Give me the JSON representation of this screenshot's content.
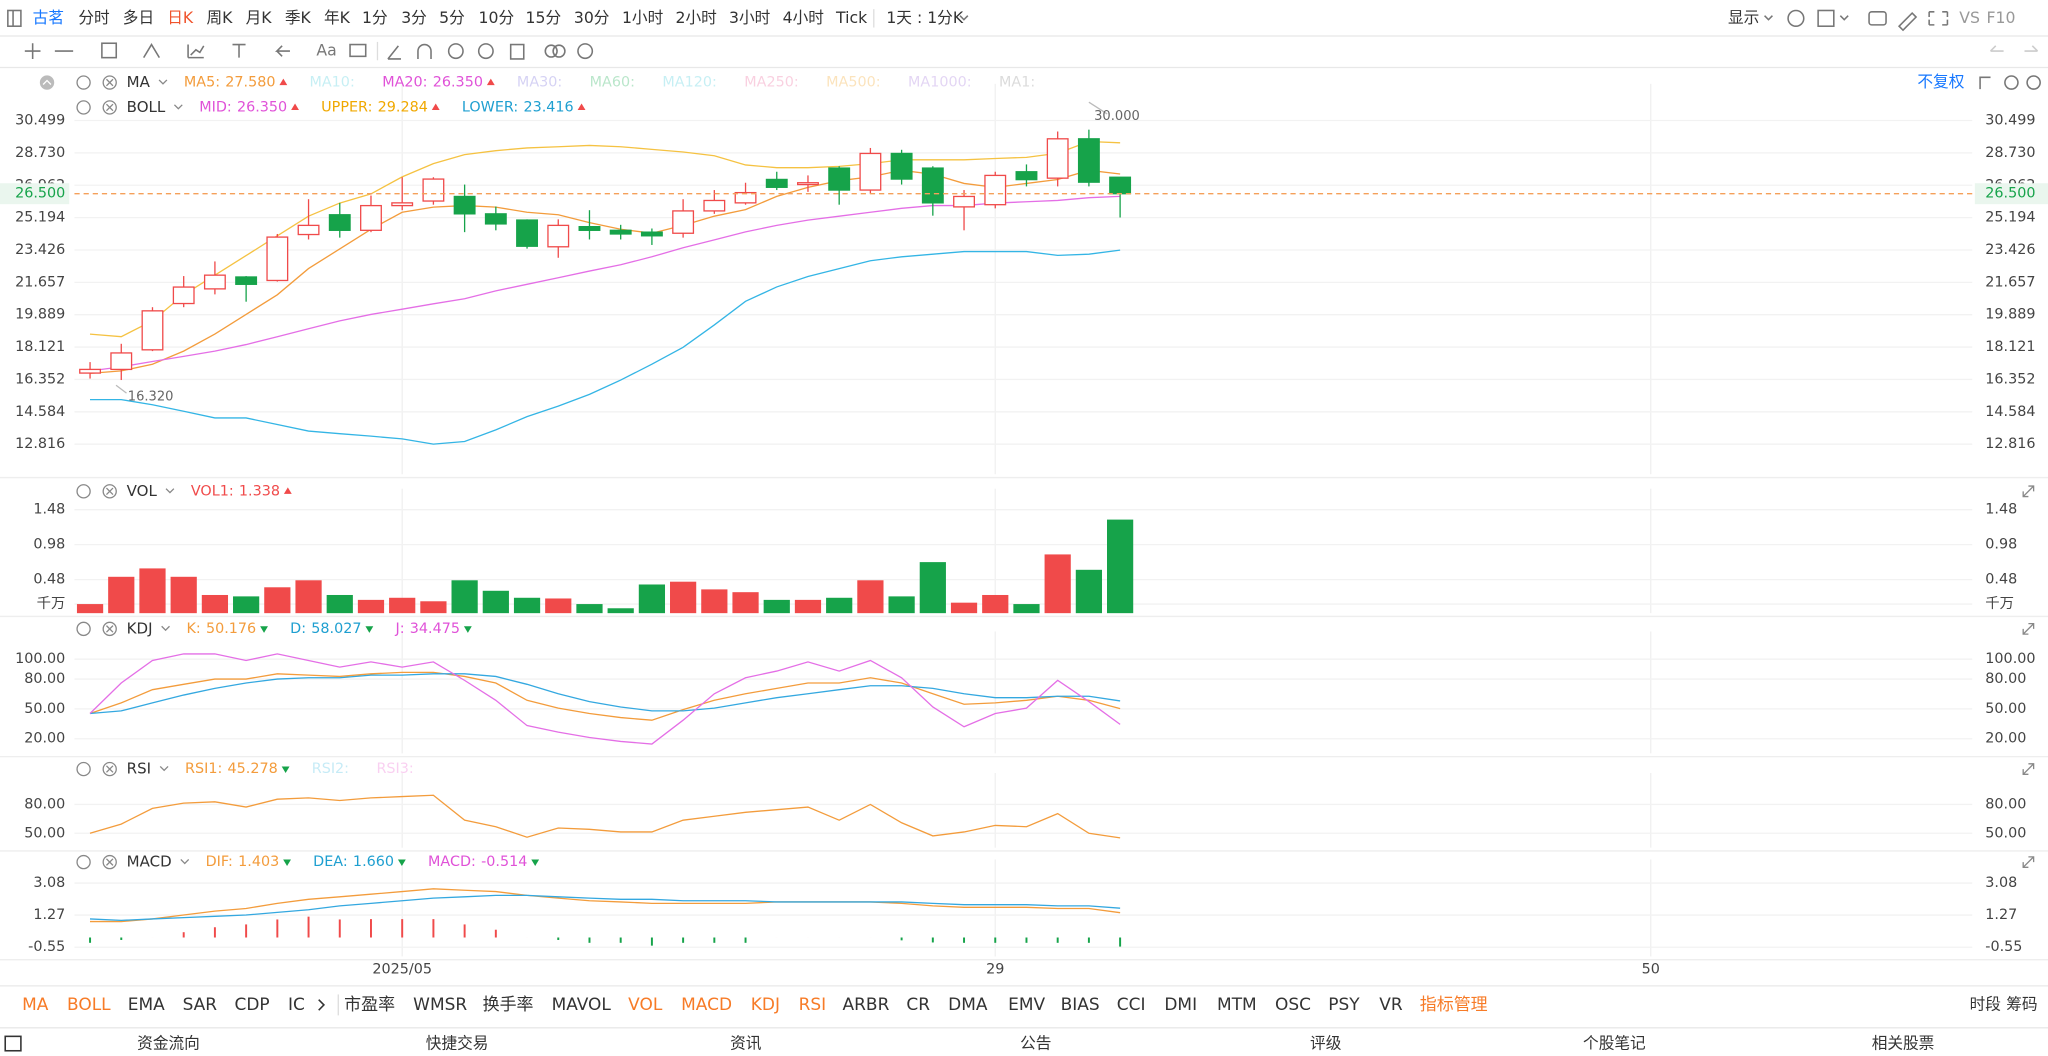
{
  "toolbar": {
    "brand": "古茗",
    "periods": [
      "分时",
      "多日",
      "日K",
      "周K",
      "月K",
      "季K",
      "年K",
      "1分",
      "3分",
      "5分",
      "10分",
      "15分",
      "30分",
      "1小时",
      "2小时",
      "3小时",
      "4小时",
      "Tick"
    ],
    "active_period": 2,
    "interval": "1天 : 1分K",
    "display": "显示",
    "vs": "VS",
    "f10": "F10",
    "adjust": "不复权",
    "font_tool": "Aa"
  },
  "indicator_tabs": [
    {
      "label": "MA",
      "active": true
    },
    {
      "label": "BOLL",
      "active": true
    },
    {
      "label": "EMA",
      "active": false
    },
    {
      "label": "SAR",
      "active": false
    },
    {
      "label": "CDP",
      "active": false
    },
    {
      "label": "IC",
      "active": false
    },
    {
      "label": "市盈率",
      "active": false
    },
    {
      "label": "WMSR",
      "active": false
    },
    {
      "label": "换手率",
      "active": false
    },
    {
      "label": "MAVOL",
      "active": false
    },
    {
      "label": "VOL",
      "active": true
    },
    {
      "label": "MACD",
      "active": true
    },
    {
      "label": "KDJ",
      "active": true
    },
    {
      "label": "RSI",
      "active": true
    },
    {
      "label": "ARBR",
      "active": false
    },
    {
      "label": "CR",
      "active": false
    },
    {
      "label": "DMA",
      "active": false
    },
    {
      "label": "EMV",
      "active": false
    },
    {
      "label": "BIAS",
      "active": false
    },
    {
      "label": "CCI",
      "active": false
    },
    {
      "label": "DMI",
      "active": false
    },
    {
      "label": "MTM",
      "active": false
    },
    {
      "label": "OSC",
      "active": false
    },
    {
      "label": "PSY",
      "active": false
    },
    {
      "label": "VR",
      "active": false
    },
    {
      "label": "指标管理",
      "active": true
    }
  ],
  "side_tabs": [
    "时段",
    "筹码"
  ],
  "footer": [
    "资金流向",
    "快捷交易",
    "资讯",
    "公告",
    "评级",
    "个股笔记",
    "相关股票"
  ],
  "chart_data": [
    {
      "type": "candlestick",
      "open": [
        16.7,
        16.9,
        17.97,
        20.5,
        21.3,
        21.95,
        21.76,
        24.27,
        25.35,
        24.5,
        25.85,
        26.1,
        26.35,
        25.4,
        25.06,
        23.6,
        24.7,
        24.5,
        24.4,
        24.34,
        25.56,
        26.0,
        27.28,
        27.0,
        27.9,
        26.7,
        28.7,
        27.9,
        25.78,
        25.9,
        27.7,
        27.35,
        29.5,
        27.4
      ],
      "high": [
        17.3,
        18.3,
        20.3,
        22.0,
        22.8,
        22.0,
        24.3,
        26.2,
        26.0,
        26.4,
        27.4,
        27.4,
        27.0,
        25.8,
        25.1,
        25.1,
        25.6,
        24.8,
        24.6,
        26.2,
        26.7,
        27.1,
        27.7,
        27.5,
        28.0,
        29.0,
        28.9,
        28.0,
        26.7,
        27.7,
        28.1,
        29.9,
        30.0,
        27.4
      ],
      "low": [
        16.4,
        16.32,
        17.9,
        20.3,
        21.0,
        20.6,
        21.7,
        24.0,
        24.1,
        24.4,
        25.6,
        25.9,
        24.4,
        24.5,
        23.5,
        23.0,
        24.0,
        24.0,
        23.7,
        24.1,
        25.4,
        25.9,
        26.7,
        26.6,
        25.9,
        26.5,
        27.0,
        25.3,
        24.5,
        25.7,
        26.9,
        26.9,
        26.9,
        25.2
      ],
      "close": [
        16.9,
        17.8,
        20.1,
        21.4,
        22.05,
        21.55,
        24.13,
        24.77,
        24.5,
        25.85,
        26.0,
        27.3,
        25.4,
        24.85,
        23.63,
        24.77,
        24.5,
        24.3,
        24.2,
        25.56,
        26.13,
        26.56,
        26.85,
        27.1,
        26.7,
        28.7,
        27.3,
        26.0,
        26.35,
        27.5,
        27.27,
        29.5,
        27.13,
        26.5
      ],
      "up_color": "#f04a4a",
      "down_color": "#16a34a",
      "ylim": [
        11.17,
        31.93
      ],
      "yticks": [
        30.499,
        {
          "value": 28.73,
          "label": "28.730"
        },
        26.962,
        25.194,
        23.426,
        21.657,
        19.889,
        18.121,
        16.352,
        14.584,
        12.816
      ],
      "grid": true,
      "last_price": {
        "value": 26.5,
        "label": "26.500"
      },
      "high_mark": {
        "index": 32,
        "value": 30.0,
        "label": "30.000"
      },
      "low_mark": {
        "index": 1,
        "value": 16.32,
        "label": "16.320"
      },
      "lines": [
        {
          "color": "#f5c242",
          "values": [
            18.83,
            18.69,
            19.55,
            20.98,
            22.05,
            23.12,
            24.2,
            25.27,
            25.99,
            26.49,
            27.42,
            28.14,
            28.64,
            28.85,
            29.0,
            29.07,
            29.14,
            29.07,
            28.92,
            28.78,
            28.57,
            28.07,
            27.92,
            27.92,
            27.99,
            28.14,
            28.35,
            28.35,
            28.35,
            28.42,
            28.49,
            28.71,
            29.35,
            29.284
          ]
        },
        {
          "color": "#f39c3c",
          "values": [
            16.68,
            16.82,
            17.18,
            17.9,
            18.83,
            19.9,
            20.98,
            22.41,
            23.48,
            24.56,
            25.49,
            25.77,
            25.85,
            25.77,
            25.49,
            25.35,
            24.92,
            24.56,
            24.34,
            24.77,
            25.27,
            25.63,
            26.35,
            26.85,
            27.21,
            27.42,
            27.78,
            27.56,
            27.06,
            26.85,
            27.06,
            27.28,
            27.78,
            27.58
          ]
        },
        {
          "color": "#e46fe6",
          "values": [
            16.82,
            17.04,
            17.33,
            17.61,
            17.9,
            18.26,
            18.69,
            19.12,
            19.55,
            19.9,
            20.19,
            20.48,
            20.76,
            21.19,
            21.55,
            21.91,
            22.27,
            22.62,
            23.05,
            23.55,
            23.98,
            24.41,
            24.77,
            25.06,
            25.27,
            25.49,
            25.7,
            25.85,
            25.85,
            25.99,
            26.06,
            26.13,
            26.28,
            26.35
          ]
        },
        {
          "color": "#34b5e5",
          "values": [
            15.25,
            15.25,
            14.97,
            14.61,
            14.25,
            14.25,
            13.89,
            13.53,
            13.39,
            13.25,
            13.1,
            12.82,
            12.96,
            13.6,
            14.32,
            14.89,
            15.54,
            16.32,
            17.18,
            18.11,
            19.33,
            20.62,
            21.41,
            21.98,
            22.41,
            22.84,
            23.05,
            23.2,
            23.34,
            23.34,
            23.34,
            23.13,
            23.2,
            23.416
          ]
        }
      ],
      "legends": [
        {
          "title": "MA",
          "items": [
            {
              "name": "MA5:",
              "value": "27.580",
              "color": "#f39c3c",
              "trend": "up",
              "active": true
            },
            {
              "name": "MA10:",
              "color": "#5fd3e0",
              "active": false
            },
            {
              "name": "MA20:",
              "value": "26.350",
              "color": "#e052d8",
              "trend": "up",
              "active": true
            },
            {
              "name": "MA30:",
              "color": "#8a7fe0",
              "active": false
            },
            {
              "name": "MA60:",
              "color": "#39b86a",
              "active": false
            },
            {
              "name": "MA120:",
              "color": "#5fd3e0",
              "active": false
            },
            {
              "name": "MA250:",
              "color": "#f07aa8",
              "active": false
            },
            {
              "name": "MA500:",
              "color": "#f5b042",
              "active": false
            },
            {
              "name": "MA1000:",
              "color": "#b08ae0",
              "active": false
            },
            {
              "name": "MA1:",
              "color": "#999999",
              "active": false
            }
          ]
        },
        {
          "title": "BOLL",
          "items": [
            {
              "name": "MID:",
              "value": "26.350",
              "color": "#e052d8",
              "trend": "up",
              "active": true
            },
            {
              "name": "UPPER:",
              "value": "29.284",
              "color": "#f0a800",
              "trend": "up",
              "active": true
            },
            {
              "name": "LOWER:",
              "value": "23.416",
              "color": "#1e9fd0",
              "trend": "up",
              "active": true
            }
          ]
        }
      ]
    },
    {
      "type": "bar",
      "values": [
        0.13,
        0.52,
        0.64,
        0.52,
        0.26,
        0.24,
        0.37,
        0.47,
        0.26,
        0.19,
        0.22,
        0.17,
        0.47,
        0.32,
        0.22,
        0.21,
        0.13,
        0.07,
        0.41,
        0.45,
        0.34,
        0.3,
        0.19,
        0.19,
        0.22,
        0.47,
        0.24,
        0.73,
        0.15,
        0.26,
        0.13,
        0.84,
        0.62,
        1.338
      ],
      "ylim": [
        0,
        1.63
      ],
      "yticks": [
        1.48,
        0.98,
        0.48,
        {
          "value": 0.13,
          "label": "千万"
        }
      ],
      "grid": true,
      "legends": [
        {
          "title": "VOL",
          "items": [
            {
              "name": "VOL1:",
              "value": "1.338",
              "color": "#f04a4a",
              "trend": "up",
              "active": true
            }
          ]
        }
      ]
    },
    {
      "type": "line",
      "ylim": [
        5.3,
        117.3
      ],
      "yticks": [
        {
          "value": 100,
          "label": "100.00"
        },
        {
          "value": 80,
          "label": "80.00"
        },
        {
          "value": 50,
          "label": "50.00"
        },
        {
          "value": 20,
          "label": "20.00"
        }
      ],
      "grid": true,
      "lines": [
        {
          "color": "#f39c3c",
          "values": [
            45.3,
            56,
            69.3,
            74.7,
            80,
            80,
            85.3,
            84,
            82.7,
            85.3,
            86.7,
            86.7,
            82.7,
            76,
            58.7,
            50.7,
            45.3,
            41.3,
            38.7,
            49.3,
            58.7,
            65.3,
            70.7,
            76,
            76,
            81.3,
            76,
            65.3,
            54.7,
            56,
            58.7,
            62.7,
            58.7,
            50.176
          ]
        },
        {
          "color": "#34a8e0",
          "values": [
            45.3,
            48,
            56,
            64,
            70.7,
            76,
            80,
            81.3,
            81.3,
            84,
            84,
            85.3,
            85.3,
            82.7,
            74.7,
            65.3,
            57.3,
            52,
            48,
            48,
            50.7,
            56,
            61.3,
            65.3,
            69.3,
            73.3,
            73.3,
            70.7,
            65.3,
            61.3,
            61.3,
            62.7,
            62.7,
            58.027
          ]
        },
        {
          "color": "#e46fe6",
          "values": [
            45.3,
            76,
            98.7,
            105.3,
            105.3,
            98.7,
            105.3,
            98.7,
            92,
            97.3,
            92,
            97.3,
            78.7,
            58.7,
            33.3,
            26.7,
            21.3,
            17.3,
            14.7,
            38.7,
            65.3,
            81.3,
            88,
            97.3,
            88,
            98.7,
            81.3,
            52,
            32,
            45.3,
            50.7,
            78.7,
            57.3,
            34.475
          ]
        }
      ],
      "legends": [
        {
          "title": "KDJ",
          "items": [
            {
              "name": "K:",
              "value": "50.176",
              "color": "#f39c3c",
              "trend": "down",
              "active": true
            },
            {
              "name": "D:",
              "value": "58.027",
              "color": "#1e9fd0",
              "trend": "down",
              "active": true
            },
            {
              "name": "J:",
              "value": "34.475",
              "color": "#e052d8",
              "trend": "down",
              "active": true
            }
          ]
        }
      ]
    },
    {
      "type": "line",
      "ylim": [
        35,
        101.8
      ],
      "yticks": [
        {
          "value": 80,
          "label": "80.00"
        },
        {
          "value": 50,
          "label": "50.00"
        }
      ],
      "grid": true,
      "lines": [
        {
          "color": "#f39c3c",
          "values": [
            50,
            59.5,
            75.9,
            81.4,
            82.7,
            77.3,
            85.5,
            86.8,
            84.1,
            86.8,
            88.2,
            89.5,
            63.6,
            56.8,
            45.9,
            55.4,
            54.1,
            51.4,
            51.4,
            63.6,
            67.7,
            71.8,
            74.5,
            77.3,
            63.6,
            80,
            60.9,
            47.3,
            51.4,
            58.2,
            56.8,
            70.5,
            50,
            45.278
          ]
        }
      ],
      "legends": [
        {
          "title": "RSI",
          "items": [
            {
              "name": "RSI1:",
              "value": "45.278",
              "color": "#f39c3c",
              "trend": "down",
              "active": true
            },
            {
              "name": "RSI2:",
              "color": "#5fc8e8",
              "active": false
            },
            {
              "name": "RSI3:",
              "color": "#f07ad8",
              "active": false
            }
          ]
        }
      ]
    },
    {
      "type": "line",
      "ylim": [
        -1.07,
        3.82
      ],
      "yticks": [
        3.08,
        1.27,
        -0.55
      ],
      "grid": true,
      "xlim": [
        -0.5,
        60.3
      ],
      "xticks": [
        {
          "value": 10,
          "label": "2025/05"
        },
        29,
        50
      ],
      "lines": [
        {
          "color": "#f39c3c",
          "values": [
            0.9,
            0.9,
            1.05,
            1.27,
            1.49,
            1.64,
            1.93,
            2.16,
            2.3,
            2.45,
            2.6,
            2.75,
            2.67,
            2.6,
            2.38,
            2.23,
            2.08,
            2.01,
            1.93,
            1.93,
            1.93,
            1.93,
            2.01,
            2.01,
            2.01,
            2.01,
            1.93,
            1.79,
            1.71,
            1.71,
            1.71,
            1.64,
            1.64,
            1.403
          ]
        },
        {
          "color": "#34a8e0",
          "values": [
            1.05,
            0.97,
            1.05,
            1.12,
            1.2,
            1.27,
            1.42,
            1.57,
            1.79,
            1.93,
            2.08,
            2.23,
            2.3,
            2.38,
            2.38,
            2.3,
            2.23,
            2.16,
            2.16,
            2.08,
            2.08,
            2.08,
            2.01,
            2.01,
            2.01,
            2.01,
            2.01,
            1.93,
            1.86,
            1.86,
            1.86,
            1.79,
            1.79,
            1.66
          ]
        }
      ],
      "histogram": [
        -0.3,
        -0.14,
        0,
        0.3,
        0.58,
        0.74,
        1.02,
        1.18,
        1.02,
        1.04,
        1.04,
        1.04,
        0.74,
        0.44,
        0,
        -0.14,
        -0.3,
        -0.3,
        -0.46,
        -0.3,
        -0.3,
        -0.3,
        0,
        0,
        0,
        0,
        -0.16,
        -0.28,
        -0.3,
        -0.3,
        -0.3,
        -0.3,
        -0.3,
        -0.514
      ],
      "legends": [
        {
          "title": "MACD",
          "items": [
            {
              "name": "DIF:",
              "value": "1.403",
              "color": "#f39c3c",
              "trend": "down",
              "active": true
            },
            {
              "name": "DEA:",
              "value": "1.660",
              "color": "#1e9fd0",
              "trend": "down",
              "active": true
            },
            {
              "name": "MACD:",
              "value": "-0.514",
              "color": "#e052d8",
              "trend": "down",
              "active": true
            }
          ]
        }
      ]
    }
  ]
}
